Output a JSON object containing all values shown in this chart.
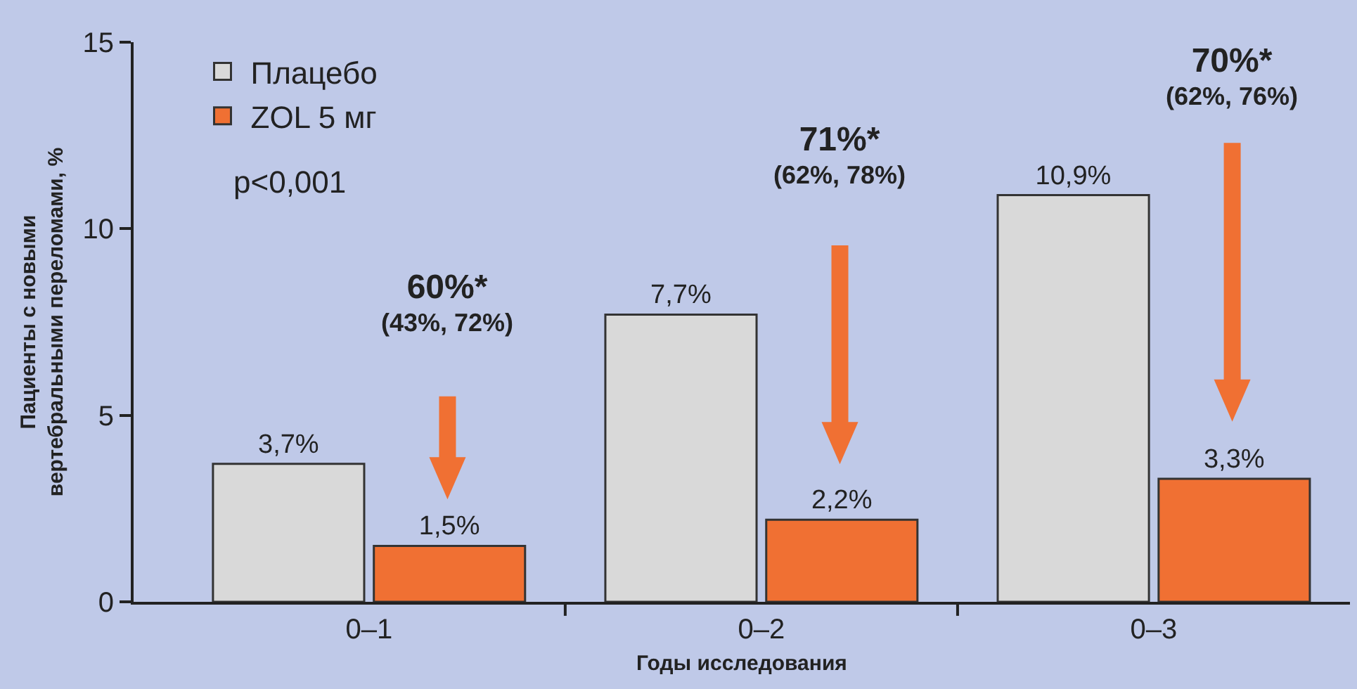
{
  "chart_data": {
    "type": "bar",
    "xlabel": "Годы исследования",
    "ylabel": "Пациенты с новыми\nвертебральными переломами, %",
    "categories": [
      "0–1",
      "0–2",
      "0–3"
    ],
    "series": [
      {
        "name": "Плацебо",
        "color": "#d9d9d9",
        "values": [
          3.7,
          7.7,
          10.9
        ],
        "value_labels": [
          "3,7%",
          "7,7%",
          "10,9%"
        ]
      },
      {
        "name": "ZOL 5 мг",
        "color": "#f07033",
        "values": [
          1.5,
          2.2,
          3.3
        ],
        "value_labels": [
          "1,5%",
          "2,2%",
          "3,3%"
        ]
      }
    ],
    "ylim": [
      0,
      15
    ],
    "yticks": [
      0,
      5,
      10,
      15
    ],
    "grid": false,
    "legend": "top left",
    "annotations": [
      "p<0,001",
      "60%*\n(43%, 72%)",
      "71%*\n(62%, 78%)",
      "70%*\n(62%, 76%)"
    ]
  }
}
